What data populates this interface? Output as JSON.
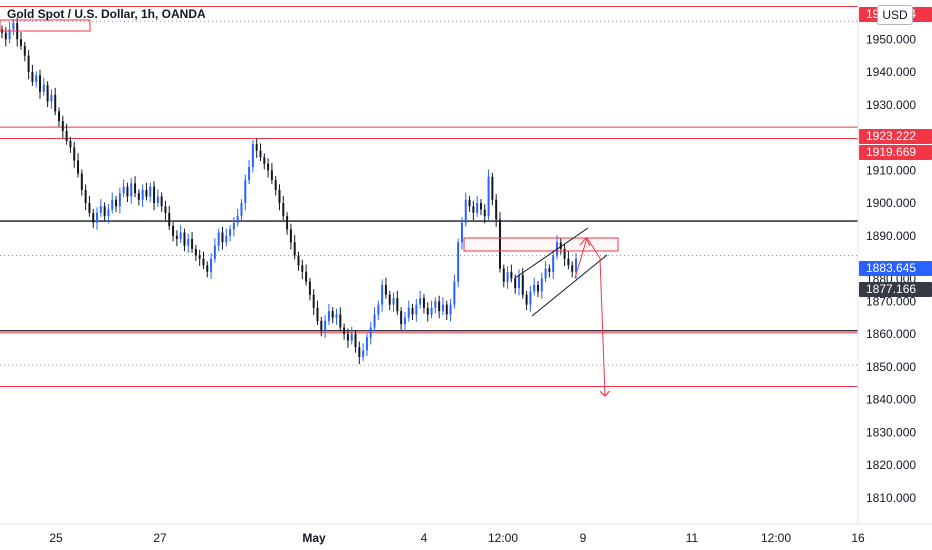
{
  "chart_data": {
    "type": "candlestick",
    "title": "Gold Spot / U.S. Dollar, 1h, OANDA",
    "currency": "USD",
    "ylim": [
      1802,
      1962
    ],
    "y_ticks": [
      1810,
      1820,
      1830,
      1840,
      1850,
      1860,
      1870,
      1880,
      1890,
      1900,
      1910,
      1920,
      1930,
      1940,
      1950
    ],
    "y_tick_labels": [
      "1810.000",
      "1820.000",
      "1830.000",
      "1840.000",
      "1850.000",
      "1860.000",
      "1870.000",
      "1880.000",
      "1890.000",
      "1900.000",
      "1910.000",
      "1920.000",
      "1930.000",
      "1940.000",
      "1950.000"
    ],
    "x_labels": [
      "25",
      "27",
      "May",
      "4",
      "12:00",
      "9",
      "11",
      "12:00",
      "16"
    ],
    "series": [
      {
        "values": [
          1952,
          1950,
          1953,
          1955,
          1950,
          1948,
          1945,
          1940,
          1937,
          1939,
          1934,
          1936,
          1931,
          1933,
          1928,
          1925,
          1922,
          1919,
          1917,
          1913,
          1909,
          1904,
          1900,
          1897,
          1894,
          1897,
          1899,
          1896,
          1898,
          1901,
          1899,
          1903,
          1905,
          1902,
          1906,
          1903,
          1901,
          1904,
          1902,
          1905,
          1900,
          1902,
          1899,
          1897,
          1893,
          1890,
          1889,
          1891,
          1887,
          1889,
          1886,
          1884,
          1883,
          1881,
          1879,
          1883,
          1887,
          1891,
          1888,
          1890,
          1892,
          1894,
          1896,
          1900,
          1907,
          1911,
          1918,
          1916,
          1914,
          1912,
          1910,
          1907,
          1904,
          1900,
          1896,
          1892,
          1888,
          1884,
          1881,
          1879,
          1876,
          1872,
          1868,
          1864,
          1861,
          1864,
          1867,
          1865,
          1866,
          1862,
          1860,
          1858,
          1860,
          1856,
          1853,
          1855,
          1859,
          1862,
          1866,
          1869,
          1875,
          1872,
          1869,
          1871,
          1867,
          1863,
          1865,
          1868,
          1866,
          1869,
          1871,
          1868,
          1866,
          1868,
          1870,
          1867,
          1869,
          1866,
          1869,
          1876,
          1888,
          1894,
          1901,
          1899,
          1897,
          1900,
          1898,
          1896,
          1908,
          1901,
          1895,
          1880,
          1876,
          1879,
          1877,
          1874,
          1878,
          1872,
          1869,
          1873,
          1875,
          1873,
          1877,
          1880,
          1879,
          1884,
          1888,
          1886,
          1883,
          1881,
          1879,
          1883
        ]
      }
    ],
    "price_labels": [
      {
        "text": "1950.364",
        "bg": "#f23645",
        "color": "#ffffff"
      },
      {
        "text": "1923.222",
        "bg": "#f23645",
        "color": "#ffffff"
      },
      {
        "text": "1919.669",
        "bg": "#f23645",
        "color": "#ffffff"
      },
      {
        "text": "1883.645",
        "bg": "#2962ff",
        "color": "#ffffff"
      },
      {
        "text": "1877.166",
        "bg": "#363a45",
        "color": "#ffffff"
      },
      {
        "text": "1880.000",
        "bg": "#ffffff",
        "color": "#131722"
      }
    ],
    "levels": {
      "red_resistance": [
        1960,
        1923.2,
        1919.7
      ],
      "black_support": [
        1894.5,
        1861
      ],
      "red_support": [
        1844
      ],
      "dotted_grey": [
        1955.5,
        1884,
        1850.5
      ]
    },
    "colors": {
      "up": "#2962ff",
      "down": "#131722",
      "level_red": "#f23645",
      "level_black": "#131722"
    }
  }
}
